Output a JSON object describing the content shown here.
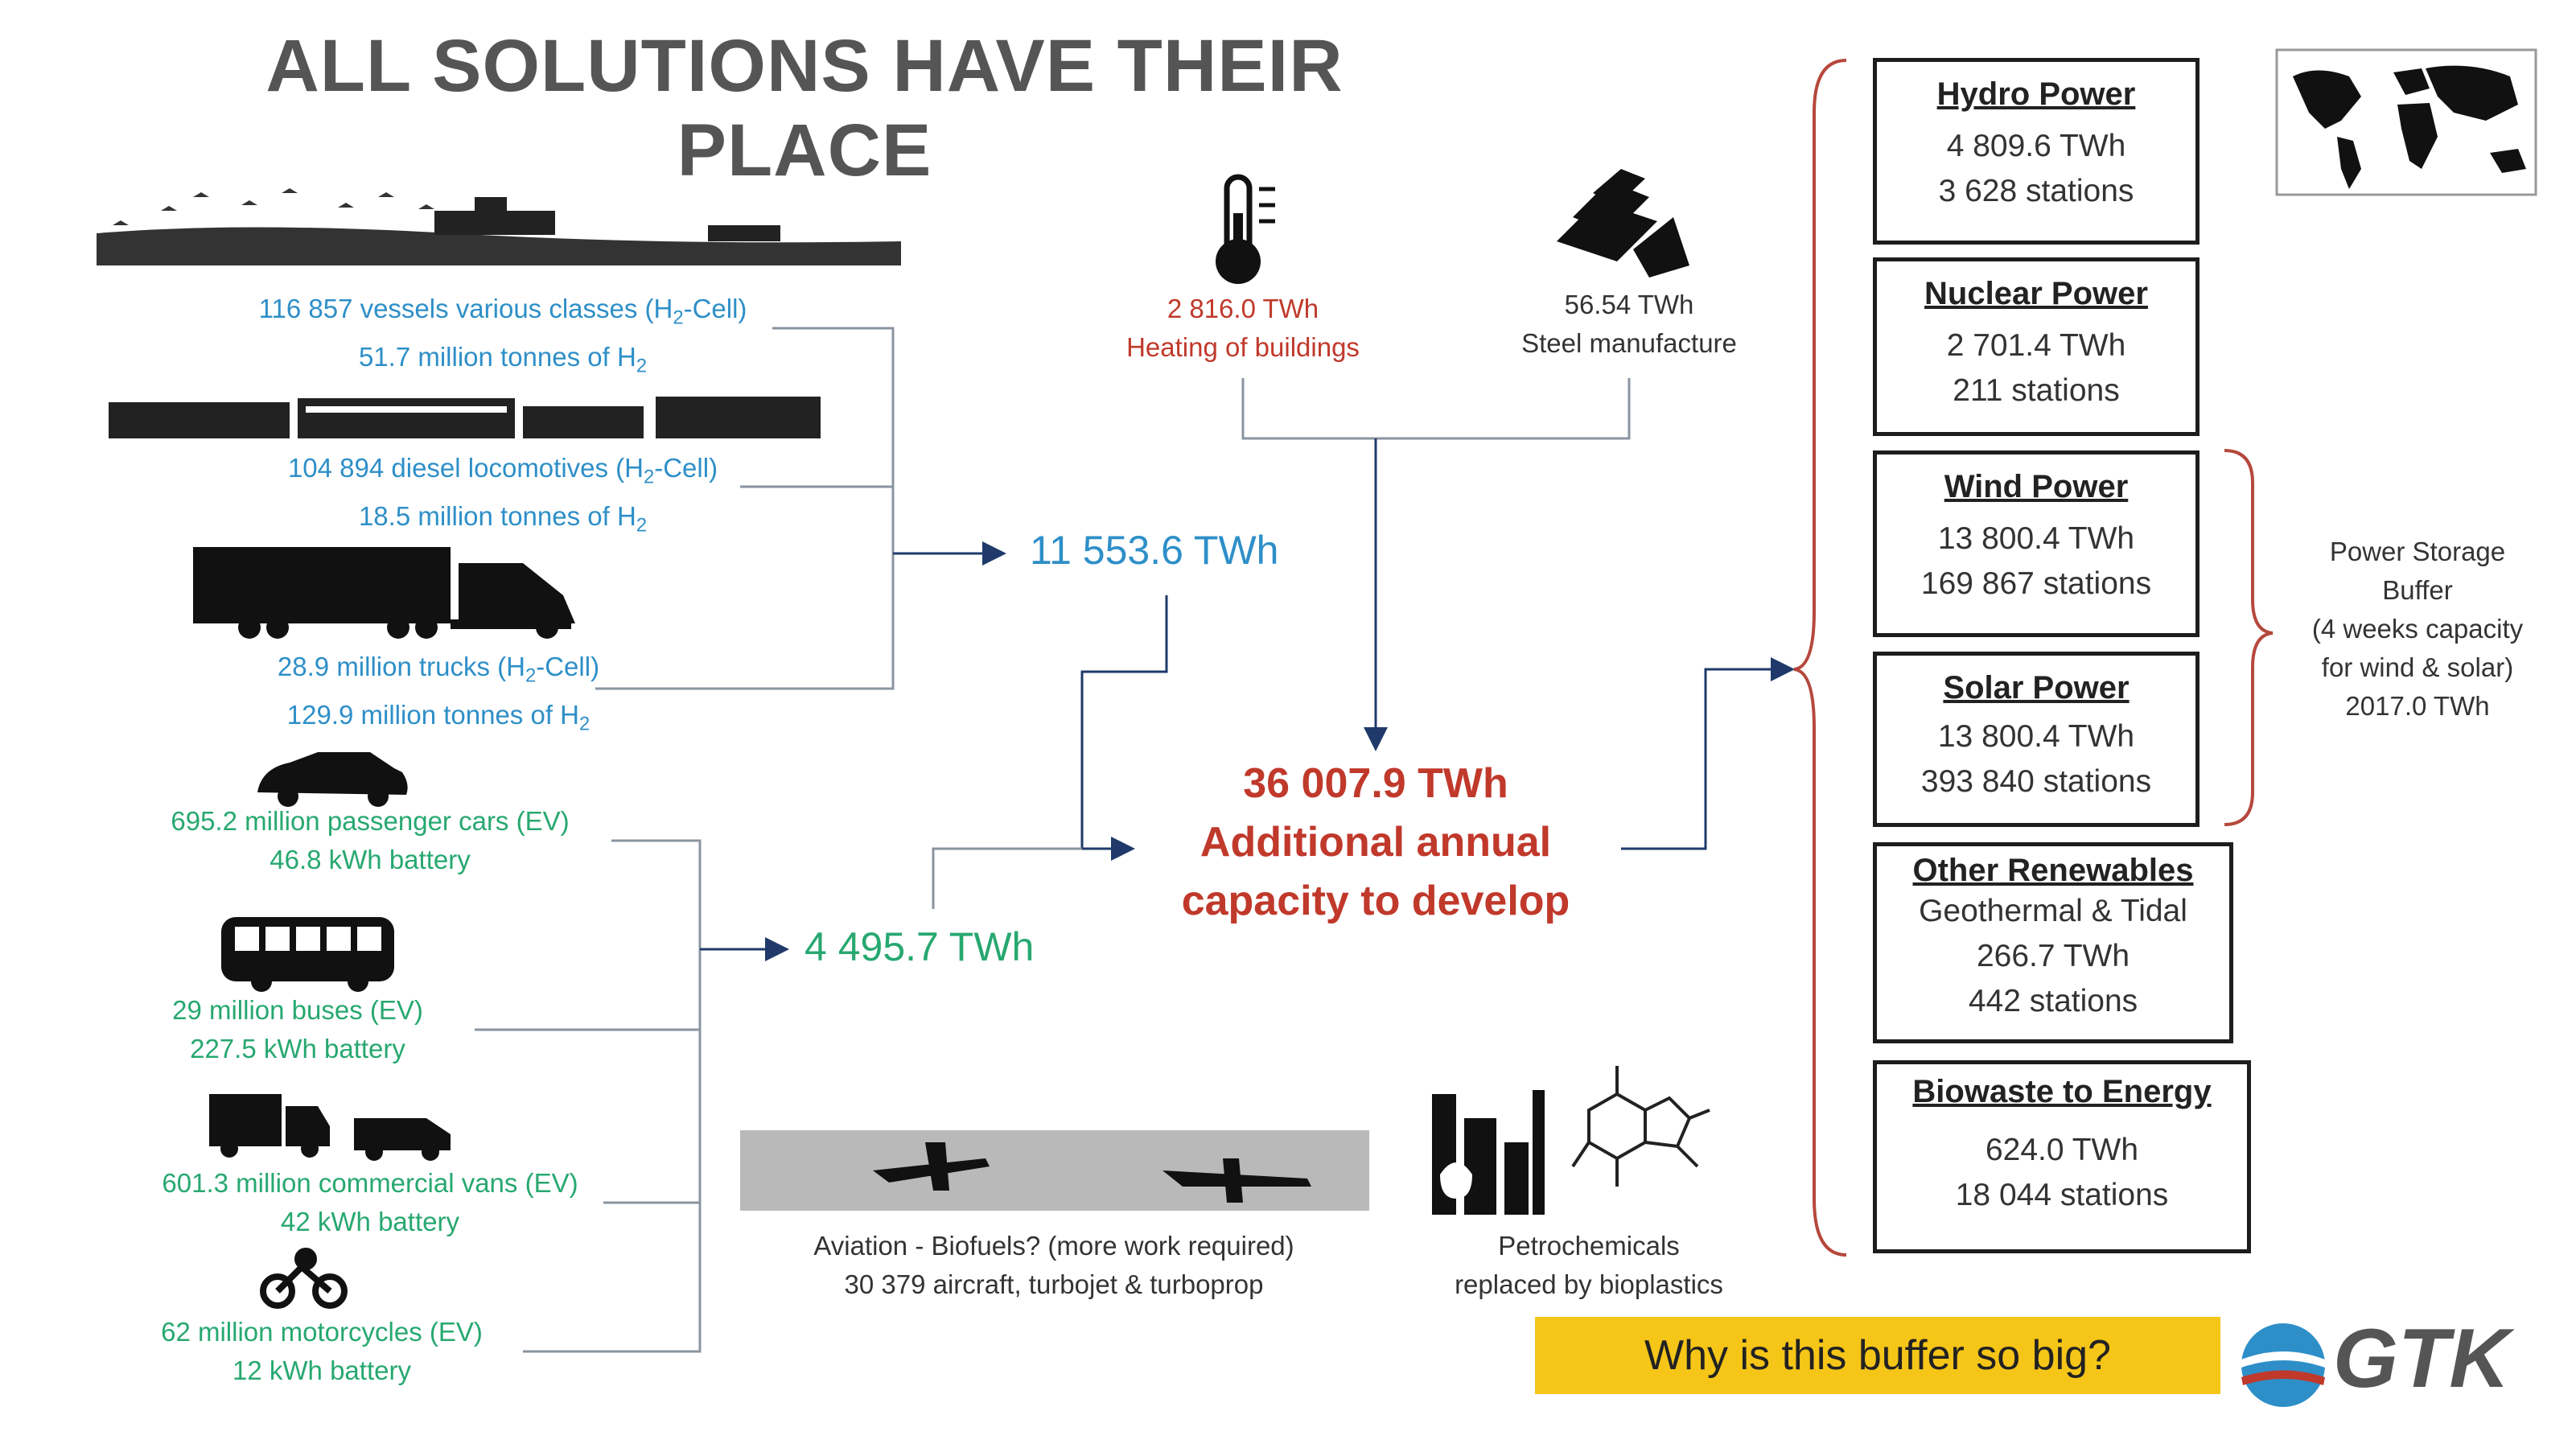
{
  "title": "ALL SOLUTIONS HAVE THEIR PLACE",
  "transport_h2": {
    "vessels": [
      "116 857 vessels various classes (H",
      "2",
      "-Cell)",
      "51.7 million tonnes of H",
      "2"
    ],
    "locomotives": [
      "104 894 diesel locomotives (H",
      "2",
      "-Cell)",
      "18.5 million tonnes of H",
      "2"
    ],
    "trucks": [
      "28.9 million trucks (H",
      "2",
      "-Cell)",
      "129.9 million tonnes of H",
      "2"
    ],
    "total": "11 553.6 TWh"
  },
  "transport_ev": {
    "cars": [
      "695.2 million passenger cars (EV)",
      "46.8 kWh battery"
    ],
    "buses": [
      "29 million buses (EV)",
      "227.5 kWh battery"
    ],
    "vans": [
      "601.3 million commercial vans (EV)",
      "42 kWh battery"
    ],
    "motorcycles": [
      "62 million motorcycles (EV)",
      "12 kWh battery"
    ],
    "total": "4 495.7 TWh"
  },
  "heating": {
    "value": "2 816.0 TWh",
    "label": "Heating of buildings"
  },
  "steel": {
    "value": "56.54 TWh",
    "label": "Steel manufacture"
  },
  "center": {
    "value": "36 007.9 TWh",
    "line2": "Additional annual",
    "line3": "capacity to develop"
  },
  "aviation": {
    "line1": "Aviation - Biofuels? (more work required)",
    "line2": "30 379 aircraft, turbojet & turboprop"
  },
  "petrochem": {
    "line1": "Petrochemicals",
    "line2": "replaced by bioplastics"
  },
  "sources": [
    {
      "title": "Hydro Power",
      "lines": [
        "4 809.6 TWh",
        "3 628 stations"
      ]
    },
    {
      "title": "Nuclear Power",
      "lines": [
        "2 701.4 TWh",
        "211  stations"
      ]
    },
    {
      "title": "Wind Power",
      "lines": [
        "13 800.4 TWh",
        "169 867 stations"
      ]
    },
    {
      "title": "Solar Power",
      "lines": [
        "13 800.4 TWh",
        "393 840 stations"
      ]
    },
    {
      "title": "Other Renewables",
      "lines": [
        "Geothermal & Tidal",
        "266.7 TWh",
        "442 stations"
      ]
    },
    {
      "title": "Biowaste to Energy",
      "lines": [
        "624.0 TWh",
        "18 044 stations"
      ]
    }
  ],
  "storage": {
    "lines": [
      "Power Storage",
      "Buffer",
      "(4 weeks capacity",
      "for wind & solar)",
      "2017.0 TWh"
    ]
  },
  "cta": "Why is this buffer so big?",
  "logo": "GTK",
  "colors": {
    "blue": "#2e8fc8",
    "green": "#27a870",
    "red": "#c0392b",
    "cta": "#f5c518"
  }
}
